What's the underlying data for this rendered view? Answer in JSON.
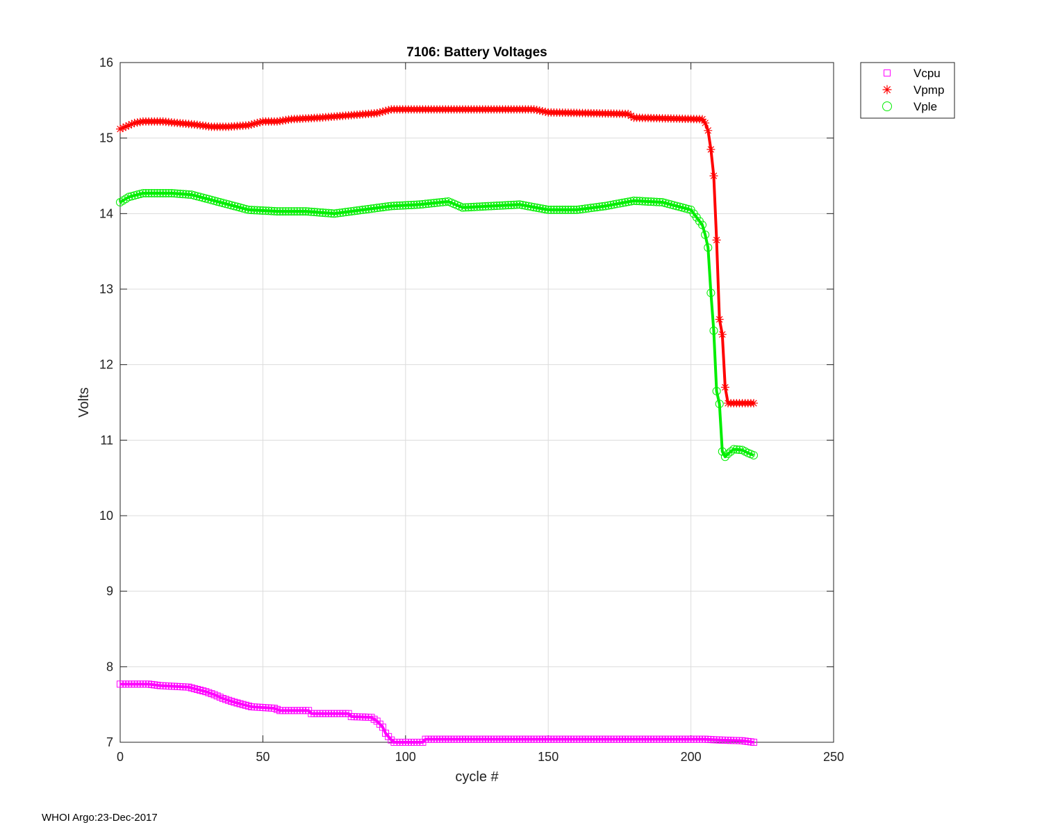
{
  "chart_data": {
    "type": "line",
    "title": "7106: Battery Voltages",
    "xlabel": "cycle #",
    "ylabel": "Volts",
    "xlim": [
      0,
      250
    ],
    "ylim": [
      7,
      16
    ],
    "xticks": [
      0,
      50,
      100,
      150,
      200,
      250
    ],
    "yticks": [
      7,
      8,
      9,
      10,
      11,
      12,
      13,
      14,
      15,
      16
    ],
    "grid": true,
    "legend_position": "outside-top-right",
    "series": [
      {
        "name": "Vcpu",
        "color": "#ff00ff",
        "marker": "square",
        "points": [
          [
            0,
            7.77
          ],
          [
            10,
            7.77
          ],
          [
            14,
            7.75
          ],
          [
            24,
            7.73
          ],
          [
            27,
            7.7
          ],
          [
            30,
            7.67
          ],
          [
            33,
            7.63
          ],
          [
            36,
            7.58
          ],
          [
            40,
            7.53
          ],
          [
            43,
            7.5
          ],
          [
            46,
            7.47
          ],
          [
            54,
            7.45
          ],
          [
            56,
            7.42
          ],
          [
            66,
            7.42
          ],
          [
            67,
            7.38
          ],
          [
            80,
            7.38
          ],
          [
            81,
            7.34
          ],
          [
            88,
            7.33
          ],
          [
            90,
            7.28
          ],
          [
            92,
            7.2
          ],
          [
            93,
            7.12
          ],
          [
            95,
            7.03
          ],
          [
            96,
            7.0
          ],
          [
            106,
            7.0
          ],
          [
            107,
            7.04
          ],
          [
            205,
            7.04
          ],
          [
            210,
            7.03
          ],
          [
            218,
            7.02
          ],
          [
            222,
            7.0
          ]
        ]
      },
      {
        "name": "Vpmp",
        "color": "#ff0000",
        "marker": "asterisk",
        "points": [
          [
            0,
            15.12
          ],
          [
            5,
            15.2
          ],
          [
            8,
            15.22
          ],
          [
            15,
            15.22
          ],
          [
            20,
            15.2
          ],
          [
            26,
            15.18
          ],
          [
            32,
            15.15
          ],
          [
            38,
            15.15
          ],
          [
            45,
            15.17
          ],
          [
            50,
            15.22
          ],
          [
            55,
            15.22
          ],
          [
            60,
            15.25
          ],
          [
            70,
            15.27
          ],
          [
            80,
            15.3
          ],
          [
            90,
            15.33
          ],
          [
            95,
            15.38
          ],
          [
            145,
            15.38
          ],
          [
            150,
            15.34
          ],
          [
            178,
            15.32
          ],
          [
            180,
            15.27
          ],
          [
            204,
            15.25
          ],
          [
            205,
            15.2
          ],
          [
            206,
            15.1
          ],
          [
            207,
            14.85
          ],
          [
            208,
            14.5
          ],
          [
            209,
            13.65
          ],
          [
            210,
            12.6
          ],
          [
            211,
            12.4
          ],
          [
            212,
            11.7
          ],
          [
            213,
            11.49
          ],
          [
            222,
            11.49
          ]
        ]
      },
      {
        "name": "Vple",
        "color": "#00ee00",
        "marker": "circle",
        "points": [
          [
            0,
            14.15
          ],
          [
            3,
            14.22
          ],
          [
            8,
            14.27
          ],
          [
            18,
            14.27
          ],
          [
            25,
            14.25
          ],
          [
            30,
            14.2
          ],
          [
            35,
            14.15
          ],
          [
            40,
            14.1
          ],
          [
            45,
            14.05
          ],
          [
            55,
            14.03
          ],
          [
            65,
            14.03
          ],
          [
            75,
            14.0
          ],
          [
            85,
            14.05
          ],
          [
            95,
            14.1
          ],
          [
            105,
            14.12
          ],
          [
            110,
            14.14
          ],
          [
            115,
            14.16
          ],
          [
            120,
            14.08
          ],
          [
            130,
            14.1
          ],
          [
            140,
            14.12
          ],
          [
            150,
            14.05
          ],
          [
            160,
            14.05
          ],
          [
            170,
            14.1
          ],
          [
            180,
            14.17
          ],
          [
            190,
            14.15
          ],
          [
            195,
            14.1
          ],
          [
            200,
            14.05
          ],
          [
            202,
            13.95
          ],
          [
            204,
            13.85
          ],
          [
            205,
            13.72
          ],
          [
            206,
            13.55
          ],
          [
            207,
            12.95
          ],
          [
            208,
            12.45
          ],
          [
            209,
            11.65
          ],
          [
            210,
            11.48
          ],
          [
            211,
            10.85
          ],
          [
            212,
            10.78
          ],
          [
            213,
            10.82
          ],
          [
            215,
            10.88
          ],
          [
            218,
            10.87
          ],
          [
            220,
            10.83
          ],
          [
            222,
            10.8
          ]
        ]
      }
    ]
  },
  "footer_text": "WHOI Argo:23-Dec-2017"
}
